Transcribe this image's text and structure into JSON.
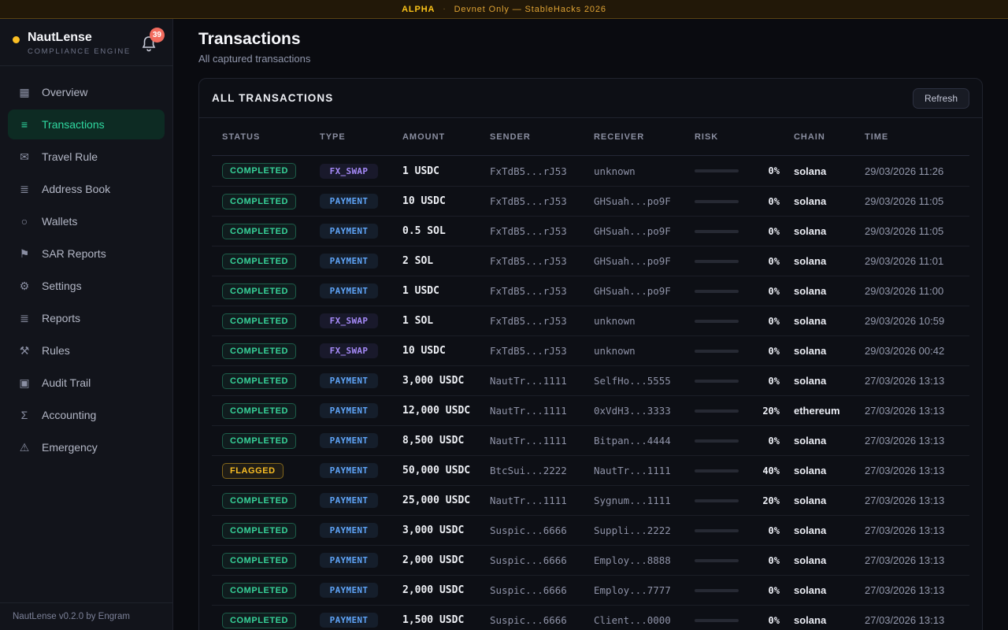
{
  "banner": {
    "alpha": "ALPHA",
    "separator": "·",
    "message": "Devnet Only — StableHacks 2026"
  },
  "sidebar": {
    "brand": {
      "name": "NautLense",
      "tagline": "COMPLIANCE ENGINE",
      "notification_count": "39"
    },
    "items": [
      {
        "label": "Overview",
        "icon": "grid-icon",
        "glyph": "▦",
        "active": false
      },
      {
        "label": "Transactions",
        "icon": "list-icon",
        "glyph": "≡",
        "active": true
      },
      {
        "label": "Travel Rule",
        "icon": "envelope-icon",
        "glyph": "✉",
        "active": false
      },
      {
        "label": "Address Book",
        "icon": "address-book-icon",
        "glyph": "≣",
        "active": false
      },
      {
        "label": "Wallets",
        "icon": "wallet-circle-icon",
        "glyph": "○",
        "active": false
      },
      {
        "label": "SAR Reports",
        "icon": "flag-icon",
        "glyph": "⚑",
        "active": false
      },
      {
        "label": "Settings",
        "icon": "gear-icon",
        "glyph": "⚙",
        "active": false
      },
      {
        "label": "Reports",
        "icon": "report-list-icon",
        "glyph": "≣",
        "active": false
      },
      {
        "label": "Rules",
        "icon": "tools-icon",
        "glyph": "⚒",
        "active": false
      },
      {
        "label": "Audit Trail",
        "icon": "ledger-icon",
        "glyph": "▣",
        "active": false
      },
      {
        "label": "Accounting",
        "icon": "sigma-icon",
        "glyph": "Σ",
        "active": false
      },
      {
        "label": "Emergency",
        "icon": "warning-icon",
        "glyph": "⚠",
        "active": false
      }
    ],
    "footer": "NautLense v0.2.0 by Engram"
  },
  "page": {
    "title": "Transactions",
    "subtitle": "All captured transactions"
  },
  "panel": {
    "title": "ALL TRANSACTIONS",
    "refresh_label": "Refresh"
  },
  "table": {
    "columns": [
      "STATUS",
      "TYPE",
      "AMOUNT",
      "SENDER",
      "RECEIVER",
      "RISK",
      "CHAIN",
      "TIME"
    ],
    "rows": [
      {
        "status": "COMPLETED",
        "type": "FX_SWAP",
        "amount": "1 USDC",
        "sender": "FxTdB5...rJ53",
        "receiver": "unknown",
        "risk_pct": 0,
        "chain": "solana",
        "time": "29/03/2026 11:26"
      },
      {
        "status": "COMPLETED",
        "type": "PAYMENT",
        "amount": "10 USDC",
        "sender": "FxTdB5...rJ53",
        "receiver": "GHSuah...po9F",
        "risk_pct": 0,
        "chain": "solana",
        "time": "29/03/2026 11:05"
      },
      {
        "status": "COMPLETED",
        "type": "PAYMENT",
        "amount": "0.5 SOL",
        "sender": "FxTdB5...rJ53",
        "receiver": "GHSuah...po9F",
        "risk_pct": 0,
        "chain": "solana",
        "time": "29/03/2026 11:05"
      },
      {
        "status": "COMPLETED",
        "type": "PAYMENT",
        "amount": "2 SOL",
        "sender": "FxTdB5...rJ53",
        "receiver": "GHSuah...po9F",
        "risk_pct": 0,
        "chain": "solana",
        "time": "29/03/2026 11:01"
      },
      {
        "status": "COMPLETED",
        "type": "PAYMENT",
        "amount": "1 USDC",
        "sender": "FxTdB5...rJ53",
        "receiver": "GHSuah...po9F",
        "risk_pct": 0,
        "chain": "solana",
        "time": "29/03/2026 11:00"
      },
      {
        "status": "COMPLETED",
        "type": "FX_SWAP",
        "amount": "1 SOL",
        "sender": "FxTdB5...rJ53",
        "receiver": "unknown",
        "risk_pct": 0,
        "chain": "solana",
        "time": "29/03/2026 10:59"
      },
      {
        "status": "COMPLETED",
        "type": "FX_SWAP",
        "amount": "10 USDC",
        "sender": "FxTdB5...rJ53",
        "receiver": "unknown",
        "risk_pct": 0,
        "chain": "solana",
        "time": "29/03/2026 00:42"
      },
      {
        "status": "COMPLETED",
        "type": "PAYMENT",
        "amount": "3,000 USDC",
        "sender": "NautTr...1111",
        "receiver": "SelfHo...5555",
        "risk_pct": 0,
        "chain": "solana",
        "time": "27/03/2026 13:13"
      },
      {
        "status": "COMPLETED",
        "type": "PAYMENT",
        "amount": "12,000 USDC",
        "sender": "NautTr...1111",
        "receiver": "0xVdH3...3333",
        "risk_pct": 20,
        "chain": "ethereum",
        "time": "27/03/2026 13:13"
      },
      {
        "status": "COMPLETED",
        "type": "PAYMENT",
        "amount": "8,500 USDC",
        "sender": "NautTr...1111",
        "receiver": "Bitpan...4444",
        "risk_pct": 0,
        "chain": "solana",
        "time": "27/03/2026 13:13"
      },
      {
        "status": "FLAGGED",
        "type": "PAYMENT",
        "amount": "50,000 USDC",
        "sender": "BtcSui...2222",
        "receiver": "NautTr...1111",
        "risk_pct": 40,
        "chain": "solana",
        "time": "27/03/2026 13:13"
      },
      {
        "status": "COMPLETED",
        "type": "PAYMENT",
        "amount": "25,000 USDC",
        "sender": "NautTr...1111",
        "receiver": "Sygnum...1111",
        "risk_pct": 20,
        "chain": "solana",
        "time": "27/03/2026 13:13"
      },
      {
        "status": "COMPLETED",
        "type": "PAYMENT",
        "amount": "3,000 USDC",
        "sender": "Suspic...6666",
        "receiver": "Suppli...2222",
        "risk_pct": 0,
        "chain": "solana",
        "time": "27/03/2026 13:13"
      },
      {
        "status": "COMPLETED",
        "type": "PAYMENT",
        "amount": "2,000 USDC",
        "sender": "Suspic...6666",
        "receiver": "Employ...8888",
        "risk_pct": 0,
        "chain": "solana",
        "time": "27/03/2026 13:13"
      },
      {
        "status": "COMPLETED",
        "type": "PAYMENT",
        "amount": "2,000 USDC",
        "sender": "Suspic...6666",
        "receiver": "Employ...7777",
        "risk_pct": 0,
        "chain": "solana",
        "time": "27/03/2026 13:13"
      },
      {
        "status": "COMPLETED",
        "type": "PAYMENT",
        "amount": "1,500 USDC",
        "sender": "Suspic...6666",
        "receiver": "Client...0000",
        "risk_pct": 0,
        "chain": "solana",
        "time": "27/03/2026 13:13"
      }
    ]
  },
  "colors": {
    "accent_green": "#2fd8a0",
    "status_completed": "#36d399",
    "status_flagged": "#fbbf24",
    "type_fx_swap": "#a78bfa",
    "type_payment": "#5ea3f7",
    "risk_fill": "#eab308",
    "brand_dot": "#fbbf24",
    "notification_badge": "#f26b5e",
    "banner_text": "#dfa335"
  }
}
